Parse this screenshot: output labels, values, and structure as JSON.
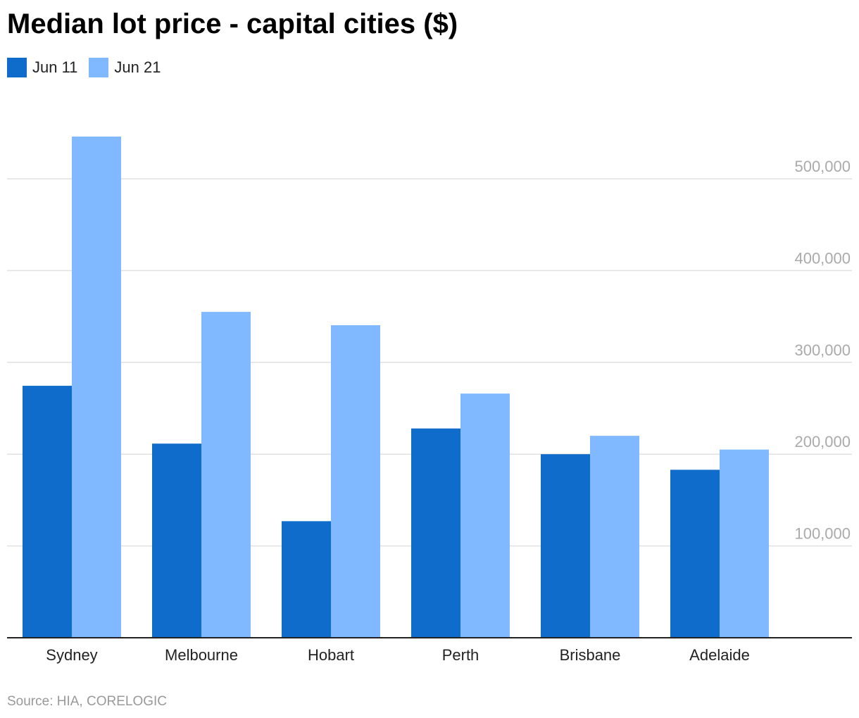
{
  "chart_data": {
    "type": "bar",
    "title": "Median lot price - capital cities ($)",
    "categories": [
      "Sydney",
      "Melbourne",
      "Hobart",
      "Perth",
      "Brisbane",
      "Adelaide"
    ],
    "series": [
      {
        "name": "Jun 11",
        "color": "#106ccb",
        "values": [
          274500,
          211500,
          127000,
          228000,
          200000,
          183000
        ]
      },
      {
        "name": "Jun 21",
        "color": "#80b9ff",
        "values": [
          546000,
          355000,
          340500,
          266000,
          220000,
          205000
        ]
      }
    ],
    "ylim": [
      0,
      500000
    ],
    "yticks": [
      100000,
      200000,
      300000,
      400000,
      500000
    ],
    "ytick_labels": [
      "100,000",
      "200,000",
      "300,000",
      "400,000",
      "500,000"
    ],
    "y_axis_position": "right",
    "grid": true,
    "legend": "top-left",
    "source": "Source: HIA, CORELOGIC"
  }
}
